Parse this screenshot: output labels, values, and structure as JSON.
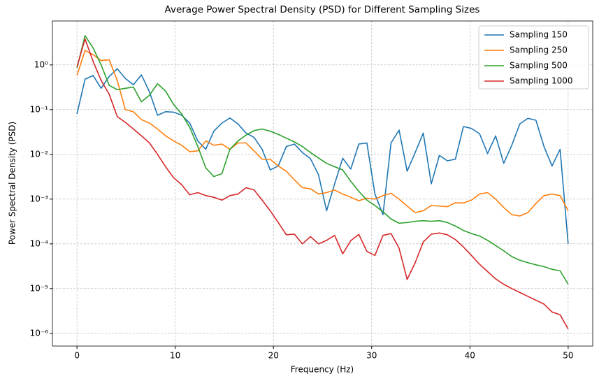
{
  "chart_data": {
    "type": "line",
    "title": "Average Power Spectral Density (PSD) for Different Sampling Sizes",
    "xlabel": "Frequency (Hz)",
    "ylabel": "Power Spectral Density (PSD)",
    "x": [
      0,
      0.82,
      1.64,
      2.46,
      3.28,
      4.1,
      4.92,
      5.74,
      6.56,
      7.38,
      8.2,
      9.02,
      9.84,
      10.66,
      11.48,
      12.3,
      13.11,
      13.93,
      14.75,
      15.57,
      16.39,
      17.21,
      18.03,
      18.85,
      19.67,
      20.49,
      21.31,
      22.13,
      22.95,
      23.77,
      24.59,
      25.41,
      26.23,
      27.05,
      27.87,
      28.69,
      29.51,
      30.33,
      31.15,
      31.97,
      32.79,
      33.61,
      34.43,
      35.25,
      36.07,
      36.89,
      37.7,
      38.52,
      39.34,
      40.16,
      40.98,
      41.8,
      42.62,
      43.44,
      44.26,
      45.08,
      45.9,
      46.72,
      47.54,
      48.36,
      49.18,
      50
    ],
    "series": [
      {
        "name": "Sampling 150",
        "color": "#1f77b4",
        "values": [
          0.08,
          0.48,
          0.58,
          0.3,
          0.55,
          0.82,
          0.5,
          0.36,
          0.6,
          0.25,
          0.075,
          0.09,
          0.088,
          0.075,
          0.05,
          0.02,
          0.013,
          0.033,
          0.05,
          0.065,
          0.048,
          0.03,
          0.024,
          0.013,
          0.0045,
          0.0055,
          0.015,
          0.017,
          0.011,
          0.008,
          0.0035,
          0.00055,
          0.0022,
          0.0082,
          0.0047,
          0.017,
          0.018,
          0.0013,
          0.00045,
          0.018,
          0.035,
          0.0042,
          0.011,
          0.03,
          0.0022,
          0.0095,
          0.0072,
          0.0078,
          0.042,
          0.038,
          0.029,
          0.0105,
          0.026,
          0.0063,
          0.016,
          0.048,
          0.064,
          0.058,
          0.015,
          0.0055,
          0.013,
          0.0001
        ]
      },
      {
        "name": "Sampling 250",
        "color": "#ff7f0e",
        "values": [
          0.58,
          2.1,
          1.7,
          1.25,
          1.3,
          0.45,
          0.1,
          0.09,
          0.06,
          0.05,
          0.037,
          0.026,
          0.02,
          0.016,
          0.0115,
          0.012,
          0.02,
          0.016,
          0.017,
          0.013,
          0.018,
          0.018,
          0.012,
          0.0078,
          0.0078,
          0.0055,
          0.0042,
          0.0027,
          0.0018,
          0.0017,
          0.0013,
          0.0014,
          0.0016,
          0.0013,
          0.0011,
          0.00092,
          0.00105,
          0.001,
          0.0012,
          0.00135,
          0.001,
          0.0007,
          0.0005,
          0.00055,
          0.00072,
          0.0007,
          0.00068,
          0.00083,
          0.00082,
          0.00095,
          0.0013,
          0.0014,
          0.001,
          0.00065,
          0.00045,
          0.00042,
          0.0005,
          0.0008,
          0.0012,
          0.0013,
          0.0012,
          0.00055
        ]
      },
      {
        "name": "Sampling 500",
        "color": "#2ca02c",
        "values": [
          0.85,
          4.5,
          2.4,
          1.0,
          0.35,
          0.28,
          0.3,
          0.32,
          0.15,
          0.21,
          0.38,
          0.26,
          0.13,
          0.08,
          0.04,
          0.015,
          0.005,
          0.0032,
          0.0037,
          0.013,
          0.02,
          0.027,
          0.034,
          0.037,
          0.033,
          0.028,
          0.023,
          0.019,
          0.015,
          0.011,
          0.0083,
          0.0063,
          0.0053,
          0.0045,
          0.0025,
          0.0015,
          0.00095,
          0.00072,
          0.00052,
          0.00036,
          0.00029,
          0.0003,
          0.00032,
          0.00033,
          0.00032,
          0.00033,
          0.0003,
          0.00025,
          0.0002,
          0.00017,
          0.00015,
          0.00012,
          9.2e-05,
          7e-05,
          5.2e-05,
          4.3e-05,
          3.8e-05,
          3.4e-05,
          3.1e-05,
          2.7e-05,
          2.5e-05,
          1.25e-05
        ]
      },
      {
        "name": "Sampling 1000",
        "color": "#d62728",
        "values": [
          0.9,
          3.8,
          1.2,
          0.45,
          0.22,
          0.07,
          0.052,
          0.037,
          0.026,
          0.018,
          0.01,
          0.0053,
          0.003,
          0.0021,
          0.00125,
          0.0014,
          0.0012,
          0.0011,
          0.00095,
          0.0012,
          0.0013,
          0.0018,
          0.0016,
          0.00095,
          0.00055,
          0.0003,
          0.00016,
          0.000165,
          0.0001,
          0.000145,
          0.0001,
          0.00012,
          0.000155,
          6e-05,
          0.000118,
          0.000163,
          6.8e-05,
          5.5e-05,
          0.000155,
          0.00017,
          8e-05,
          1.6e-05,
          3.8e-05,
          0.00011,
          0.000165,
          0.000175,
          0.00016,
          0.000125,
          8.5e-05,
          5.5e-05,
          3.5e-05,
          2.4e-05,
          1.65e-05,
          1.25e-05,
          1e-05,
          8.2e-06,
          6.7e-06,
          5.5e-06,
          4.5e-06,
          3e-06,
          2.6e-06,
          1.25e-06
        ]
      }
    ],
    "xlim": [
      -2.5,
      52.5
    ],
    "ylim": [
      5.2e-07,
      9.6
    ],
    "yscale": "log",
    "xticks": [
      0,
      10,
      20,
      30,
      40,
      50
    ],
    "yticks": [
      {
        "value": 1e-06,
        "label": "10⁻⁶"
      },
      {
        "value": 1e-05,
        "label": "10⁻⁵"
      },
      {
        "value": 0.0001,
        "label": "10⁻⁴"
      },
      {
        "value": 0.001,
        "label": "10⁻³"
      },
      {
        "value": 0.01,
        "label": "10⁻²"
      },
      {
        "value": 0.1,
        "label": "10⁻¹"
      },
      {
        "value": 1,
        "label": "10⁰"
      }
    ],
    "grid": true,
    "legend": "upper right"
  }
}
